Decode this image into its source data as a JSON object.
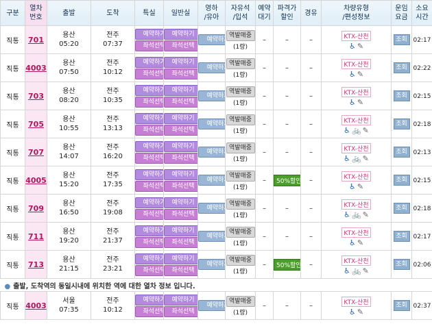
{
  "headers": [
    "구분",
    "열차\n번호",
    "출발",
    "도착",
    "특실",
    "일반실",
    "영하\n/유아",
    "자유석\n/입석",
    "예약\n대기",
    "파격가\n할인",
    "경유",
    "차량유형\n/편성정보",
    "운임\n요금",
    "소요\n시간"
  ],
  "labels": {
    "reserve": "예약하기",
    "seat_select": "좌석선택",
    "standing": "역발매중",
    "standing_sub": "(1량)",
    "ktx": "KTX-산천",
    "inquire": "조회",
    "dash": "–"
  },
  "trains": [
    {
      "type": "직통",
      "no": "701",
      "dep_st": "용산",
      "dep_t": "05:20",
      "arr_st": "전주",
      "arr_t": "07:37",
      "discount": "",
      "icons": "wheel-bed",
      "dur": "02:17"
    },
    {
      "type": "직통",
      "no": "4003",
      "dep_st": "용산",
      "dep_t": "07:50",
      "arr_st": "전주",
      "arr_t": "10:12",
      "discount": "",
      "icons": "wheel-bed",
      "dur": "02:22"
    },
    {
      "type": "직통",
      "no": "703",
      "dep_st": "용산",
      "dep_t": "08:20",
      "arr_st": "전주",
      "arr_t": "10:35",
      "discount": "",
      "icons": "wheel-bed",
      "dur": "02:15"
    },
    {
      "type": "직통",
      "no": "705",
      "dep_st": "용산",
      "dep_t": "10:55",
      "arr_st": "전주",
      "arr_t": "13:13",
      "discount": "",
      "icons": "wheel-bike-bed",
      "dur": "02:18"
    },
    {
      "type": "직통",
      "no": "707",
      "dep_st": "용산",
      "dep_t": "14:07",
      "arr_st": "전주",
      "arr_t": "16:20",
      "discount": "",
      "icons": "wheel-bike-bed",
      "dur": "02:13"
    },
    {
      "type": "직통",
      "no": "4005",
      "dep_st": "용산",
      "dep_t": "15:20",
      "arr_st": "전주",
      "arr_t": "17:35",
      "discount": "50%할인",
      "icons": "wheel-bed",
      "dur": "02:15"
    },
    {
      "type": "직통",
      "no": "709",
      "dep_st": "용산",
      "dep_t": "16:50",
      "arr_st": "전주",
      "arr_t": "19:08",
      "discount": "",
      "icons": "wheel-bike-bed",
      "dur": "02:18"
    },
    {
      "type": "직통",
      "no": "711",
      "dep_st": "용산",
      "dep_t": "19:20",
      "arr_st": "전주",
      "arr_t": "21:37",
      "discount": "",
      "icons": "wheel-bed",
      "dur": "02:17"
    },
    {
      "type": "직통",
      "no": "713",
      "dep_st": "용산",
      "dep_t": "21:15",
      "arr_st": "전주",
      "arr_t": "23:21",
      "discount": "50%할인",
      "icons": "wheel-bike-bed",
      "dur": "02:06"
    }
  ],
  "note": "출발, 도착역의 동일시내에 위치한 역에 대한 열차 정보 입니다.",
  "extra_trains": [
    {
      "type": "직통",
      "no": "4003",
      "dep_st": "서울",
      "dep_t": "07:35",
      "arr_st": "전주",
      "arr_t": "10:12",
      "discount": "",
      "icons": "wheel-bed",
      "dur": "02:37"
    }
  ]
}
